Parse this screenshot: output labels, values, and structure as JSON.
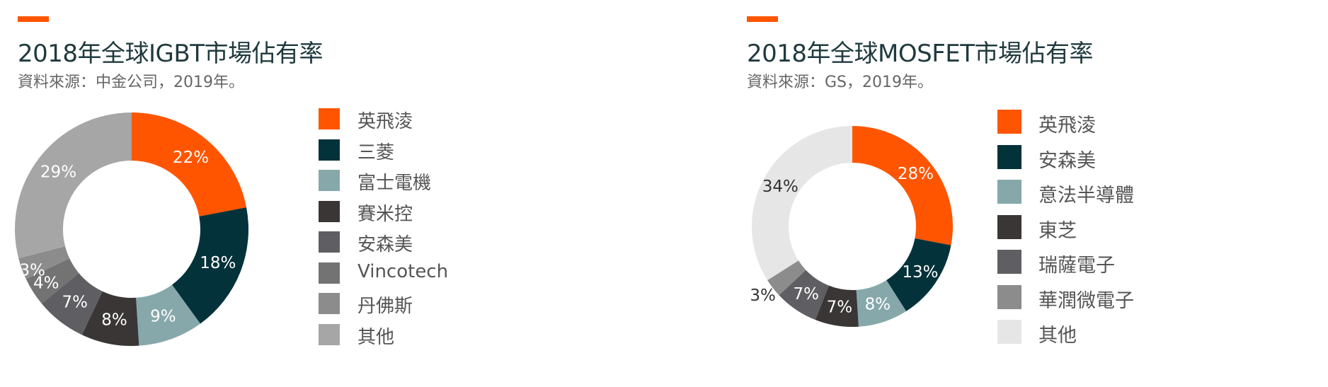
{
  "chart_data": [
    {
      "type": "pie",
      "title": "2018年全球IGBT市場佔有率",
      "subtitle": "資料來源：中金公司，2019年。",
      "accent_color": "#ff5500",
      "legend_position": "right",
      "slices": [
        {
          "label": "英飛淩",
          "value": 22,
          "display": "22%",
          "color": "#ff5500"
        },
        {
          "label": "三菱",
          "value": 18,
          "display": "18%",
          "color": "#04323a"
        },
        {
          "label": "富士電機",
          "value": 9,
          "display": "9%",
          "color": "#86a8ab"
        },
        {
          "label": "賽米控",
          "value": 8,
          "display": "8%",
          "color": "#3a3636"
        },
        {
          "label": "安森美",
          "value": 7,
          "display": "7%",
          "color": "#5f5f63"
        },
        {
          "label": "Vincotech",
          "value": 4,
          "display": "4%",
          "color": "#737373"
        },
        {
          "label": "丹佛斯",
          "value": 3,
          "display": "3%",
          "color": "#8c8c8c"
        },
        {
          "label": "其他",
          "value": 29,
          "display": "29%",
          "color": "#a6a6a6"
        }
      ]
    },
    {
      "type": "pie",
      "title": "2018年全球MOSFET市場佔有率",
      "subtitle": "資料來源：GS，2019年。",
      "accent_color": "#ff5500",
      "legend_position": "right",
      "slices": [
        {
          "label": "英飛淩",
          "value": 28,
          "display": "28%",
          "color": "#ff5500"
        },
        {
          "label": "安森美",
          "value": 13,
          "display": "13%",
          "color": "#04323a"
        },
        {
          "label": "意法半導體",
          "value": 8,
          "display": "8%",
          "color": "#86a8ab"
        },
        {
          "label": "東芝",
          "value": 7,
          "display": "7%",
          "color": "#3a3636"
        },
        {
          "label": "瑞薩電子",
          "value": 7,
          "display": "7%",
          "color": "#5f5f63"
        },
        {
          "label": "華潤微電子",
          "value": 3,
          "display": "3%",
          "color": "#8c8c8c"
        },
        {
          "label": "其他",
          "value": 34,
          "display": "34%",
          "color": "#e6e6e6"
        }
      ]
    }
  ]
}
